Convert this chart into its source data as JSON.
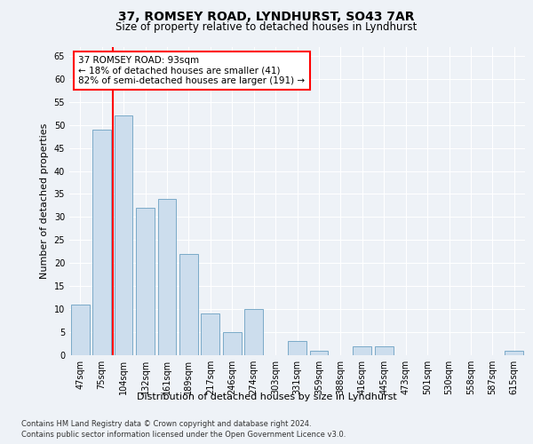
{
  "title1": "37, ROMSEY ROAD, LYNDHURST, SO43 7AR",
  "title2": "Size of property relative to detached houses in Lyndhurst",
  "xlabel": "Distribution of detached houses by size in Lyndhurst",
  "ylabel": "Number of detached properties",
  "categories": [
    "47sqm",
    "75sqm",
    "104sqm",
    "132sqm",
    "161sqm",
    "189sqm",
    "217sqm",
    "246sqm",
    "274sqm",
    "303sqm",
    "331sqm",
    "359sqm",
    "388sqm",
    "416sqm",
    "445sqm",
    "473sqm",
    "501sqm",
    "530sqm",
    "558sqm",
    "587sqm",
    "615sqm"
  ],
  "values": [
    11,
    49,
    52,
    32,
    34,
    22,
    9,
    5,
    10,
    0,
    3,
    1,
    0,
    2,
    2,
    0,
    0,
    0,
    0,
    0,
    1
  ],
  "bar_color": "#ccdded",
  "bar_edge_color": "#7aaac8",
  "red_line_index": 1.5,
  "annotation_text": "37 ROMSEY ROAD: 93sqm\n← 18% of detached houses are smaller (41)\n82% of semi-detached houses are larger (191) →",
  "ylim": [
    0,
    67
  ],
  "yticks": [
    0,
    5,
    10,
    15,
    20,
    25,
    30,
    35,
    40,
    45,
    50,
    55,
    60,
    65
  ],
  "background_color": "#eef2f7",
  "plot_bg_color": "#eef2f7",
  "grid_color": "#ffffff",
  "footnote_line1": "Contains HM Land Registry data © Crown copyright and database right 2024.",
  "footnote_line2": "Contains public sector information licensed under the Open Government Licence v3.0.",
  "title1_fontsize": 10,
  "title2_fontsize": 8.5,
  "ylabel_fontsize": 8,
  "xlabel_fontsize": 8,
  "tick_fontsize": 7,
  "annot_fontsize": 7.5,
  "footnote_fontsize": 6
}
